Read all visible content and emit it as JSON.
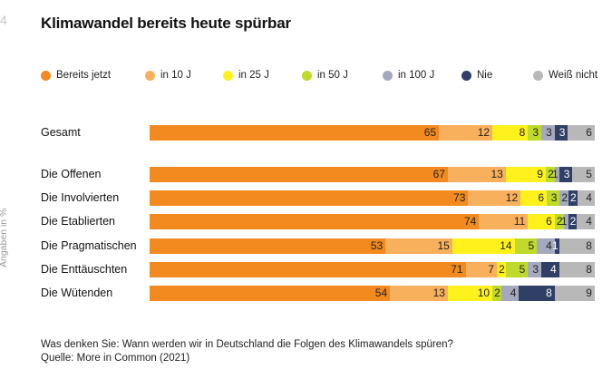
{
  "corner_mark": "4",
  "title": "Klimawandel bereits heute spürbar",
  "y_axis_label": "Angaben in %",
  "legend": [
    {
      "name": "Bereits jetzt",
      "color": "#F28A1F"
    },
    {
      "name": "in 10 J",
      "color": "#F8B05C"
    },
    {
      "name": "in 25 J",
      "color": "#FFF21C"
    },
    {
      "name": "in 50 J",
      "color": "#BFDA2A"
    },
    {
      "name": "in 100 J",
      "color": "#A5A9BD"
    },
    {
      "name": "Nie",
      "color": "#2F3F66"
    },
    {
      "name": "Weiß nicht",
      "color": "#B8B8B8"
    }
  ],
  "chart_data": {
    "type": "bar",
    "stacked": true,
    "orientation": "horizontal",
    "title": "Klimawandel bereits heute spürbar",
    "ylabel": "Angaben in %",
    "categories": [
      "Gesamt",
      "Die Offenen",
      "Die Involvierten",
      "Die Etablierten",
      "Die Pragmatischen",
      "Die Enttäuschten",
      "Die Wütenden"
    ],
    "series": [
      {
        "name": "Bereits jetzt",
        "values": [
          65,
          67,
          73,
          74,
          53,
          71,
          54
        ]
      },
      {
        "name": "in 10 J",
        "values": [
          12,
          13,
          12,
          11,
          15,
          7,
          13
        ]
      },
      {
        "name": "in 25 J",
        "values": [
          8,
          9,
          6,
          6,
          14,
          2,
          10
        ]
      },
      {
        "name": "in 50 J",
        "values": [
          3,
          2,
          3,
          2,
          5,
          5,
          2
        ]
      },
      {
        "name": "in 100 J",
        "values": [
          3,
          1,
          2,
          1,
          4,
          3,
          4
        ]
      },
      {
        "name": "Nie",
        "values": [
          3,
          3,
          2,
          2,
          1,
          4,
          8
        ]
      },
      {
        "name": "Weiß nicht",
        "values": [
          6,
          5,
          4,
          4,
          8,
          8,
          9
        ]
      }
    ],
    "legend_position": "top",
    "grid": false
  },
  "footnote": {
    "question": "Was denken Sie: Wann werden wir in Deutschland die Folgen des Klimawandels spüren?",
    "source": "Quelle: More in Common (2021)"
  }
}
